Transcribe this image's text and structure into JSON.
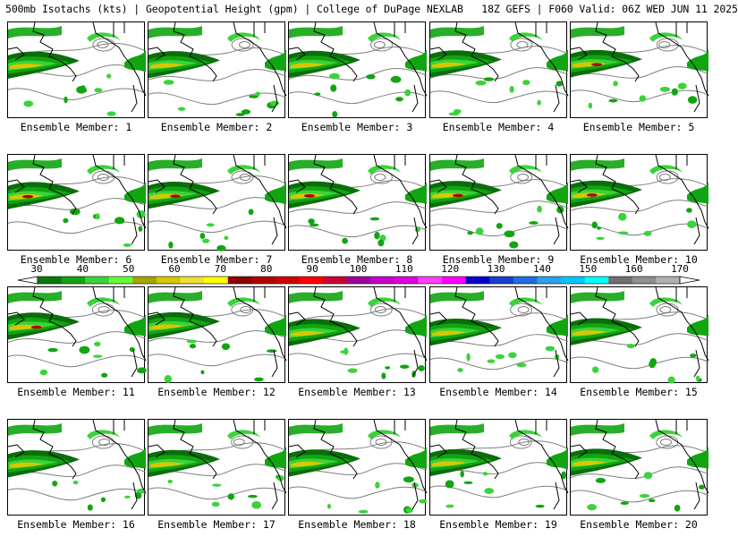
{
  "title": "500mb Isotachs (kts) | Geopotential Height (gpm) | College of DuPage NEXLAB   18Z GEFS | F060 Valid: 06Z WED JUN 11 2025",
  "member_label_prefix": "Ensemble Member: ",
  "members": [
    1,
    2,
    3,
    4,
    5,
    6,
    7,
    8,
    9,
    10,
    11,
    12,
    13,
    14,
    15,
    16,
    17,
    18,
    19,
    20
  ],
  "colorbar": {
    "labels": [
      "30",
      "40",
      "50",
      "60",
      "70",
      "80",
      "90",
      "100",
      "110",
      "120",
      "130",
      "140",
      "150",
      "160",
      "170"
    ],
    "colors": [
      "#0a7a0a",
      "#11a511",
      "#3ad33a",
      "#66ff33",
      "#a5a500",
      "#d7c800",
      "#f0e030",
      "#ffff00",
      "#8b0000",
      "#b30000",
      "#d00000",
      "#ff0000",
      "#cc0033",
      "#a000a0",
      "#c800c8",
      "#e000e0",
      "#ff40ff",
      "#ff00ff",
      "#0000cc",
      "#1a3fcc",
      "#1f6fe0",
      "#2aa0f0",
      "#00c8ff",
      "#00ffff",
      "#707070",
      "#909090",
      "#b0b0b0"
    ]
  },
  "colors": {
    "isotach_light": "#3ad33a",
    "isotach_mid": "#11a511",
    "isotach_dark": "#0a6e0a",
    "isotach_yellow": "#d7c800",
    "isotach_brown": "#a05a00",
    "isotach_red": "#b30000",
    "height_contour": "#7f7f7f",
    "coastline": "#000000"
  }
}
